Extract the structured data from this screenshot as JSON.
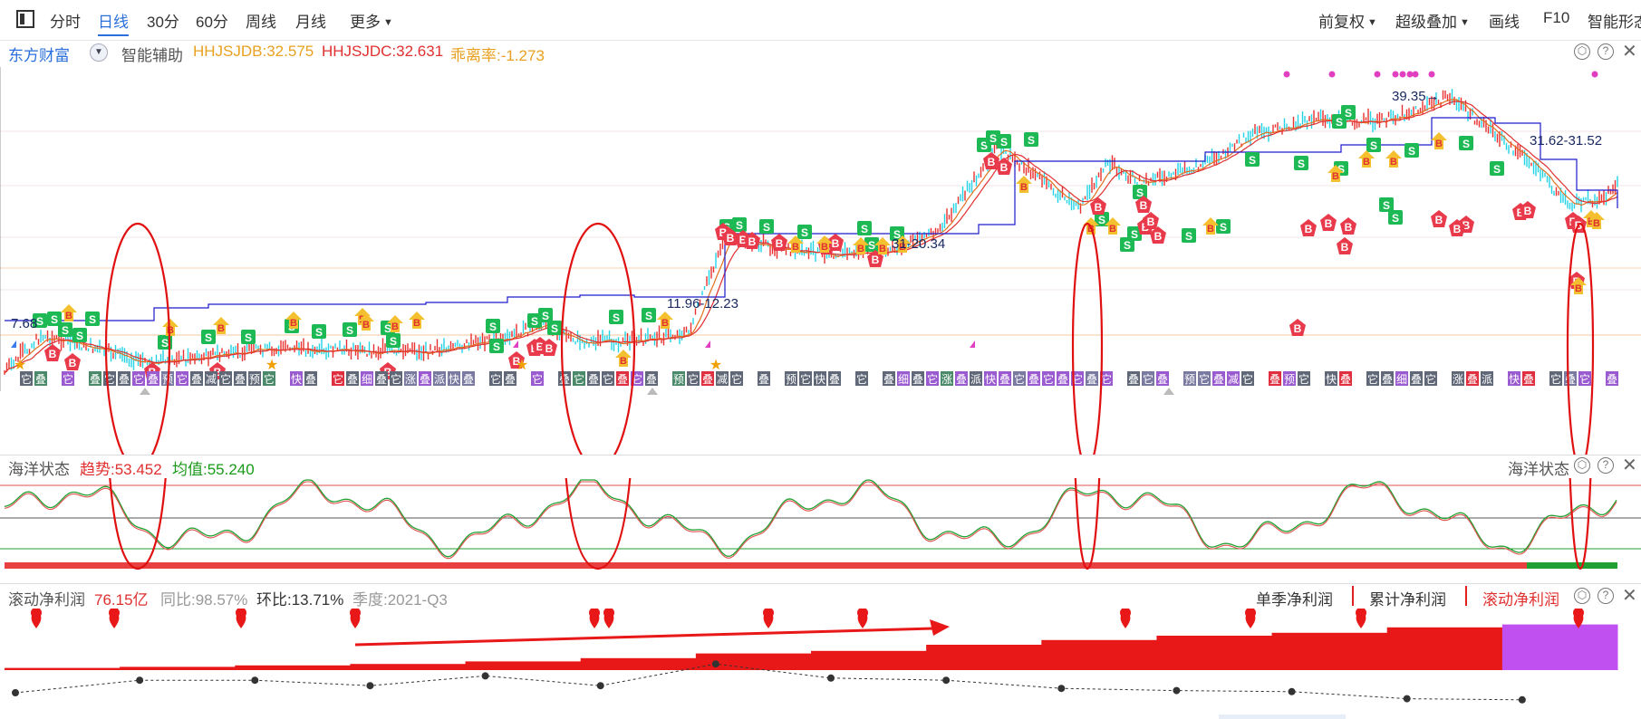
{
  "toolbar": {
    "left_items": [
      {
        "label": "分时",
        "active": false
      },
      {
        "label": "日线",
        "active": true
      },
      {
        "label": "30分",
        "active": false
      },
      {
        "label": "60分",
        "active": false
      },
      {
        "label": "周线",
        "active": false
      },
      {
        "label": "月线",
        "active": false
      }
    ],
    "more_label": "更多",
    "right_items": [
      {
        "label": "前复权",
        "dropdown": true
      },
      {
        "label": "超级叠加",
        "dropdown": true
      },
      {
        "label": "画线",
        "dropdown": false
      },
      {
        "label": "F10",
        "dropdown": false
      },
      {
        "label": "智能形态",
        "dropdown": false
      }
    ]
  },
  "main_chart": {
    "stock_name": "东方财富",
    "assist_label": "智能辅助",
    "hhjsjdb": "HHJSJDB:32.575",
    "hhjsjdc": "HHJSJDC:32.631",
    "deviation": "乖离率:-1.273",
    "annotations": [
      "7.68",
      "11.96-12.23",
      "31-20.34",
      "39.35→",
      "31.62-31.52"
    ],
    "buy_label": "B",
    "sell_label": "S",
    "bottom_tags": [
      "它",
      "叠",
      "它",
      "叠",
      "它",
      "叠",
      "它",
      "叠",
      "预",
      "它",
      "叠",
      "减",
      "它",
      "叠",
      "预",
      "它",
      "快",
      "叠",
      "它",
      "叠",
      "细",
      "叠",
      "它",
      "涨",
      "叠",
      "派",
      "快",
      "叠",
      "它",
      "叠"
    ],
    "colors": {
      "up": "#e83030",
      "down": "#22d3e6",
      "ma1": "#e07020",
      "ma2": "#e03030",
      "step": "#1a1acc",
      "buy": "#e83a4a",
      "sell": "#1db954",
      "ellipse": "#e01010"
    }
  },
  "ocean": {
    "title": "海洋状态",
    "trend": "趋势:53.452",
    "mean": "均值:55.240",
    "right_title": "海洋状态"
  },
  "profit": {
    "title": "滚动净利润",
    "value": "76.15亿",
    "yoy": "同比:98.57%",
    "qoq": "环比:13.71%",
    "season": "季度:2021-Q3",
    "tabs": [
      "单季净利润",
      "累计净利润",
      "滚动净利润"
    ],
    "bars": [
      0.6,
      0.9,
      1.3,
      1.7,
      2.4,
      3.3,
      4.6,
      5.3,
      7.0,
      8.3,
      9.5,
      10.3,
      11.8,
      12.6
    ],
    "eps": [
      0.5,
      2.8,
      2.8,
      1.8,
      3.6,
      1.8,
      5.8,
      3.2,
      2.8,
      1.3,
      0.9,
      0.7,
      -0.6,
      -0.8
    ]
  }
}
